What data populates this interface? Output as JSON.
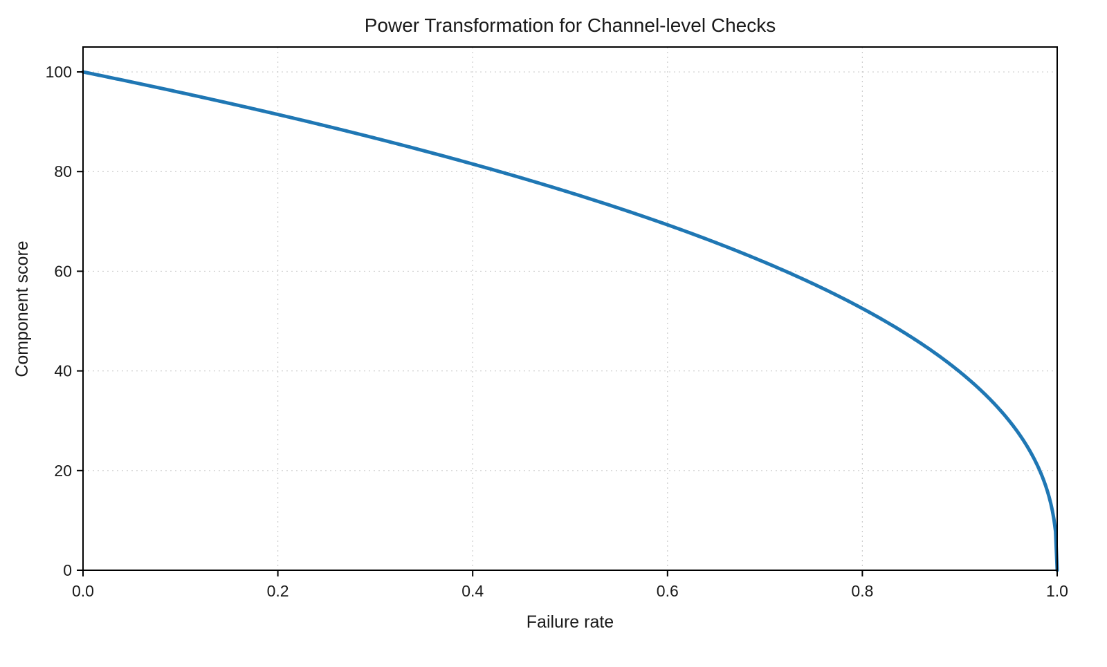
{
  "page": {
    "background_color": "#ffffff"
  },
  "chart_data": {
    "type": "line",
    "title": "Power Transformation for Channel-level Checks",
    "xlabel": "Failure rate",
    "ylabel": "Component score",
    "xlim": [
      0,
      1
    ],
    "ylim": [
      0,
      105
    ],
    "xticks": [
      0.0,
      0.2,
      0.4,
      0.6,
      0.8,
      1.0
    ],
    "xtick_labels": [
      "0.0",
      "0.2",
      "0.4",
      "0.6",
      "0.8",
      "1.0"
    ],
    "yticks": [
      0,
      20,
      40,
      60,
      80,
      100
    ],
    "ytick_labels": [
      "0",
      "20",
      "40",
      "60",
      "80",
      "100"
    ],
    "grid": true,
    "grid_style": "dashed",
    "grid_color": "#cccccc",
    "legend": "none",
    "line_color": "#1f77b4",
    "line_width": 5,
    "function": "y = 100 * (1 - x)^0.4",
    "y_max": 100,
    "power_exponent": 0.4,
    "series": [
      {
        "name": "component-score",
        "x": [
          0,
          0.05,
          0.1,
          0.15,
          0.2,
          0.25,
          0.3,
          0.35,
          0.4,
          0.45,
          0.5,
          0.55,
          0.6,
          0.65,
          0.7,
          0.75,
          0.8,
          0.85,
          0.9,
          0.92,
          0.94,
          0.96,
          0.98,
          0.99,
          0.995,
          0.999,
          1.0
        ],
        "y": [
          100,
          97.97,
          95.88,
          93.71,
          91.46,
          89.13,
          86.7,
          84.17,
          81.52,
          78.73,
          75.79,
          72.66,
          69.31,
          65.71,
          61.78,
          57.43,
          52.53,
          46.82,
          39.81,
          36.41,
          32.45,
          27.59,
          20.91,
          15.85,
          12.01,
          6.31,
          0
        ]
      }
    ]
  }
}
